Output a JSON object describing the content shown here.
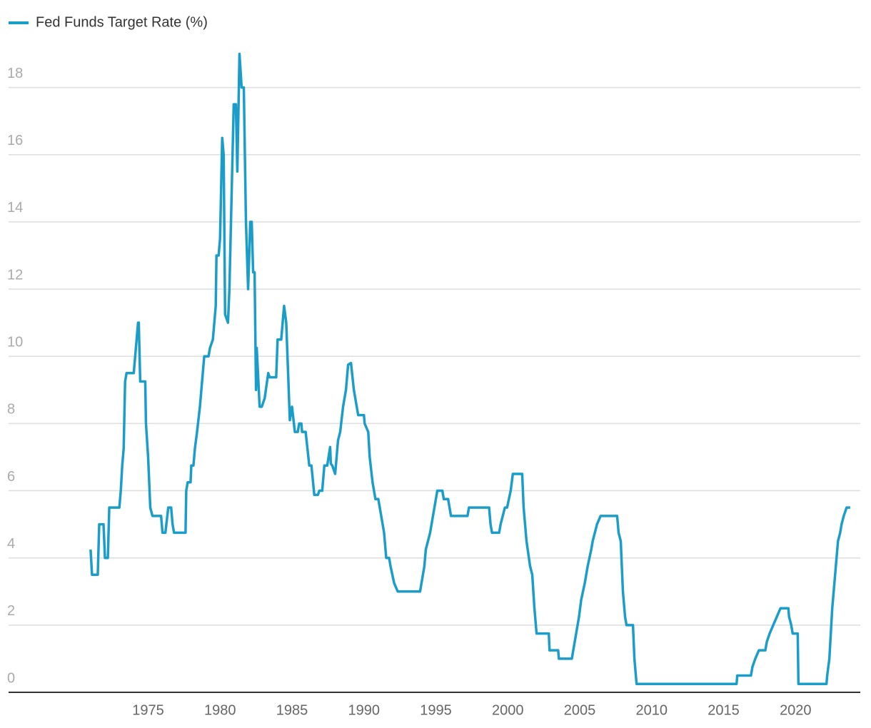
{
  "chart_data": {
    "type": "line",
    "x": [
      1971.0,
      1971.1,
      1971.5,
      1971.6,
      1971.9,
      1972.0,
      1972.2,
      1972.3,
      1973.0,
      1973.1,
      1973.2,
      1973.3,
      1973.4,
      1973.5,
      1974.0,
      1974.1,
      1974.3,
      1974.35,
      1974.45,
      1974.8,
      1974.85,
      1975.0,
      1975.15,
      1975.3,
      1975.9,
      1976.0,
      1976.2,
      1976.4,
      1976.6,
      1976.7,
      1976.8,
      1977.6,
      1977.65,
      1977.75,
      1977.95,
      1978.0,
      1978.15,
      1978.25,
      1978.4,
      1978.6,
      1978.7,
      1978.9,
      1979.2,
      1979.3,
      1979.5,
      1979.7,
      1979.75,
      1979.9,
      1980.0,
      1980.15,
      1980.25,
      1980.35,
      1980.55,
      1980.65,
      1980.95,
      1981.1,
      1981.2,
      1981.35,
      1981.5,
      1981.65,
      1981.8,
      1981.95,
      1982.1,
      1982.2,
      1982.3,
      1982.4,
      1982.5,
      1982.55,
      1982.75,
      1982.9,
      1983.1,
      1983.35,
      1983.45,
      1983.9,
      1984.0,
      1984.25,
      1984.45,
      1984.6,
      1984.85,
      1985.0,
      1985.2,
      1985.4,
      1985.5,
      1985.65,
      1985.7,
      1985.95,
      1986.2,
      1986.35,
      1986.55,
      1986.8,
      1986.9,
      1987.1,
      1987.25,
      1987.45,
      1987.65,
      1987.7,
      1987.8,
      1988.0,
      1988.2,
      1988.35,
      1988.55,
      1988.75,
      1988.9,
      1989.1,
      1989.3,
      1989.6,
      1990.0,
      1990.05,
      1990.3,
      1990.4,
      1990.6,
      1990.8,
      1991.0,
      1991.2,
      1991.4,
      1991.55,
      1991.75,
      1991.85,
      1992.1,
      1992.35,
      1993.9,
      1994.2,
      1994.3,
      1994.6,
      1994.9,
      1995.1,
      1995.45,
      1995.55,
      1995.85,
      1996.05,
      1997.2,
      1997.3,
      1998.7,
      1998.8,
      1998.9,
      1999.4,
      1999.5,
      1999.65,
      1999.8,
      1999.95,
      2000.2,
      2000.35,
      2001.0,
      2001.1,
      2001.3,
      2001.55,
      2001.7,
      2001.85,
      2001.95,
      2002.0,
      2002.85,
      2002.9,
      2003.5,
      2003.55,
      2004.45,
      2004.55,
      2004.75,
      2004.95,
      2005.1,
      2005.35,
      2005.55,
      2005.8,
      2005.9,
      2006.05,
      2006.2,
      2006.45,
      2007.6,
      2007.7,
      2007.85,
      2008.0,
      2008.15,
      2008.25,
      2008.7,
      2008.8,
      2008.95,
      2015.9,
      2015.95,
      2016.9,
      2017.0,
      2017.2,
      2017.45,
      2017.9,
      2018.0,
      2018.2,
      2018.45,
      2018.7,
      2018.95,
      2019.5,
      2019.55,
      2019.7,
      2019.8,
      2020.15,
      2020.2,
      2022.15,
      2022.2,
      2022.35,
      2022.45,
      2022.55,
      2022.7,
      2022.85,
      2022.95,
      2023.1,
      2023.2,
      2023.35,
      2023.55,
      2023.8
    ],
    "series": [
      {
        "name": "Fed Funds Target Rate (%)",
        "color": "#1b9dc9",
        "values": [
          4.25,
          3.5,
          3.5,
          5.0,
          5.0,
          4.0,
          4.0,
          5.5,
          5.5,
          6.0,
          6.75,
          7.25,
          9.25,
          9.5,
          9.5,
          10.0,
          11.0,
          11.0,
          9.25,
          9.25,
          8.0,
          7.0,
          5.5,
          5.25,
          5.25,
          4.75,
          4.75,
          5.5,
          5.5,
          5.0,
          4.75,
          4.75,
          6.0,
          6.25,
          6.25,
          6.75,
          6.75,
          7.25,
          7.75,
          8.5,
          9.0,
          10.0,
          10.0,
          10.25,
          10.5,
          11.5,
          13.0,
          13.0,
          13.5,
          16.5,
          16.0,
          11.25,
          11.0,
          12.0,
          17.5,
          17.5,
          15.5,
          19.0,
          18.0,
          18.0,
          14.0,
          12.0,
          14.0,
          14.0,
          12.5,
          12.5,
          9.0,
          10.25,
          8.5,
          8.5,
          8.75,
          9.5,
          9.375,
          9.375,
          10.5,
          10.5,
          11.5,
          11.0,
          8.1,
          8.5,
          7.75,
          7.75,
          8.0,
          8.0,
          7.75,
          7.75,
          6.75,
          6.75,
          5.875,
          5.875,
          6.0,
          6.0,
          6.75,
          6.75,
          7.3,
          6.8,
          6.75,
          6.5,
          7.5,
          7.75,
          8.5,
          9.0,
          9.75,
          9.8,
          9.0,
          8.25,
          8.25,
          8.0,
          7.75,
          7.0,
          6.25,
          5.75,
          5.75,
          5.25,
          4.75,
          4.0,
          4.0,
          3.75,
          3.25,
          3.0,
          3.0,
          3.75,
          4.25,
          4.75,
          5.5,
          6.0,
          6.0,
          5.75,
          5.75,
          5.25,
          5.25,
          5.5,
          5.5,
          5.0,
          4.75,
          4.75,
          5.0,
          5.25,
          5.5,
          5.5,
          6.0,
          6.5,
          6.5,
          5.5,
          4.5,
          3.75,
          3.5,
          2.5,
          2.0,
          1.75,
          1.75,
          1.25,
          1.25,
          1.0,
          1.0,
          1.25,
          1.75,
          2.25,
          2.75,
          3.25,
          3.75,
          4.25,
          4.5,
          4.75,
          5.0,
          5.25,
          5.25,
          4.75,
          4.5,
          3.0,
          2.25,
          2.0,
          2.0,
          1.0,
          0.25,
          0.25,
          0.5,
          0.5,
          0.75,
          1.0,
          1.25,
          1.25,
          1.5,
          1.75,
          2.0,
          2.25,
          2.5,
          2.5,
          2.25,
          2.0,
          1.75,
          1.75,
          0.25,
          0.25,
          0.5,
          1.0,
          1.75,
          2.5,
          3.25,
          4.0,
          4.5,
          4.75,
          5.0,
          5.25,
          5.5,
          5.5
        ]
      }
    ],
    "xlim": [
      1965.3,
      2024.5
    ],
    "xticks": [
      1975,
      1980,
      1985,
      1990,
      1995,
      2000,
      2005,
      2010,
      2015,
      2020
    ],
    "ylim": [
      0,
      19.5
    ],
    "yticks": [
      0,
      2,
      4,
      6,
      8,
      10,
      12,
      14,
      16,
      18
    ],
    "grid": true,
    "legend": "top-left"
  }
}
